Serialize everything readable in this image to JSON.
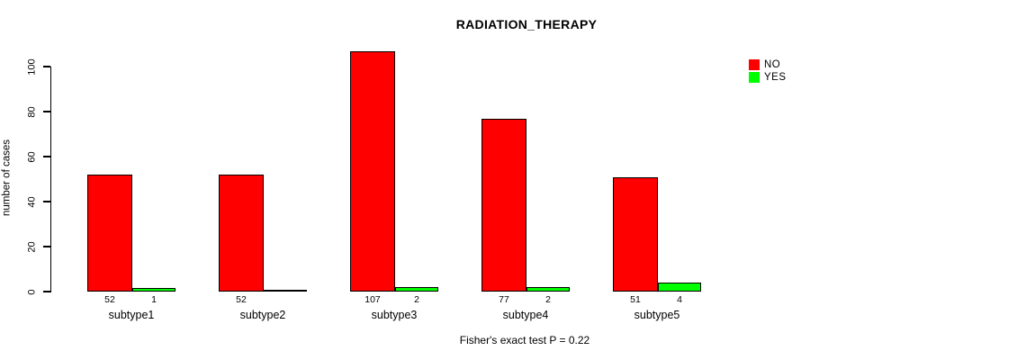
{
  "chart_data": {
    "type": "bar",
    "title": "RADIATION_THERAPY",
    "ylabel": "number of cases",
    "xlabel": "",
    "annotation": "Fisher's exact test P = 0.22",
    "categories": [
      "subtype1",
      "subtype2",
      "subtype3",
      "subtype4",
      "subtype5"
    ],
    "series": [
      {
        "name": "NO",
        "color": "#ff0000",
        "values": [
          52,
          52,
          107,
          77,
          51
        ],
        "bar_labels": [
          "52",
          "52",
          "107",
          "77",
          "51"
        ]
      },
      {
        "name": "YES",
        "color": "#00ff00",
        "values": [
          1,
          0,
          2,
          2,
          4
        ],
        "bar_labels": [
          "1",
          "",
          "2",
          "2",
          "4"
        ]
      }
    ],
    "yticks": [
      0,
      20,
      40,
      60,
      80,
      100
    ],
    "ylim": [
      0,
      110
    ],
    "grid": false,
    "legend_position": "top-right",
    "background": "#ffffff",
    "text_color": "#000000"
  }
}
